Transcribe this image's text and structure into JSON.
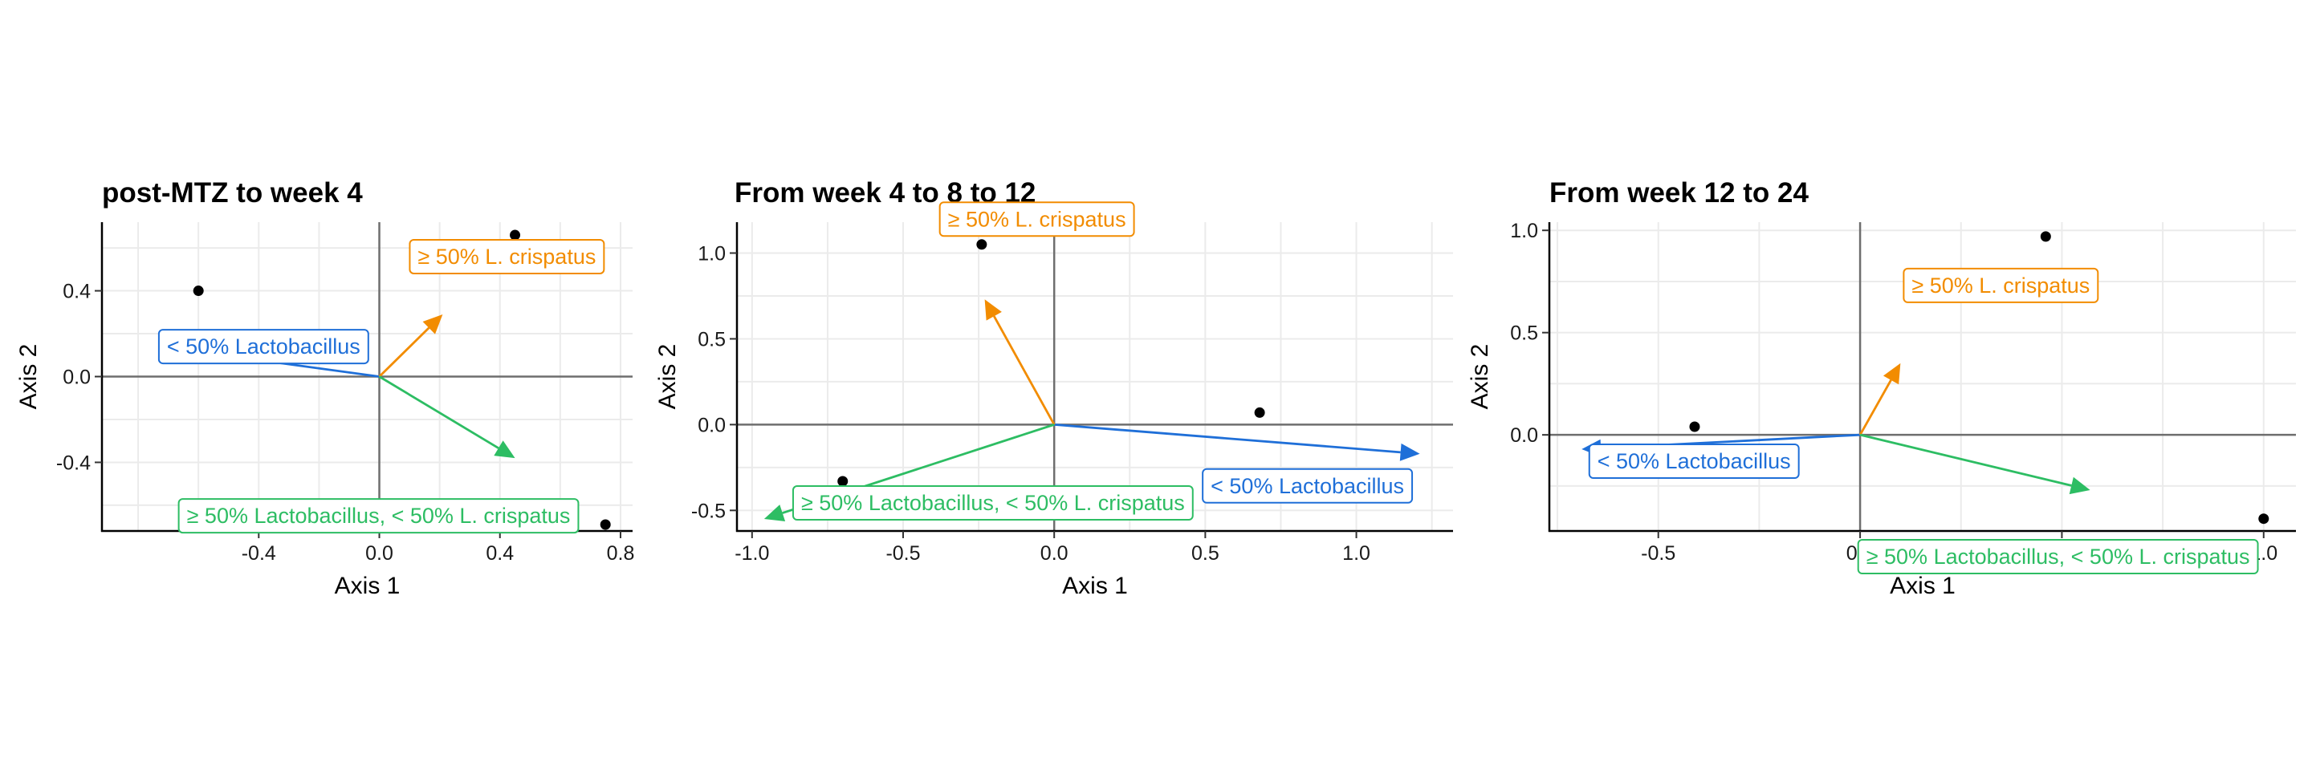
{
  "chart_data": [
    {
      "type": "scatter",
      "title": "post-MTZ to week 4",
      "xlabel": "Axis 1",
      "ylabel": "Axis 2",
      "xlim": [
        -0.92,
        0.84
      ],
      "ylim": [
        -0.72,
        0.72
      ],
      "xticks": [
        -0.4,
        0.0,
        0.4,
        0.8
      ],
      "xtick_labels": [
        "-0.4",
        "0.0",
        "0.4",
        "0.8"
      ],
      "yticks": [
        -0.4,
        0.0,
        0.4
      ],
      "ytick_labels": [
        "-0.4",
        "0.0",
        "0.4"
      ],
      "grid": true,
      "points": [
        {
          "x": -0.6,
          "y": 0.4
        },
        {
          "x": 0.45,
          "y": 0.66
        },
        {
          "x": 0.75,
          "y": -0.69
        }
      ],
      "vectors": [
        {
          "label": "< 50% Lactobacillus",
          "x": -0.73,
          "y": 0.14,
          "color": "#1f6fd8"
        },
        {
          "label": "≥ 50% L. crispatus",
          "x": 0.21,
          "y": 0.29,
          "color": "#f28c00"
        },
        {
          "label": "≥ 50% Lactobacillus, < 50% L. crispatus",
          "x": 0.45,
          "y": -0.38,
          "color": "#2dbd63"
        }
      ]
    },
    {
      "type": "scatter",
      "title": "From week 4 to 8 to 12",
      "xlabel": "Axis 1",
      "ylabel": "Axis 2",
      "xlim": [
        -1.05,
        1.32
      ],
      "ylim": [
        -0.62,
        1.18
      ],
      "xticks": [
        -1.0,
        -0.5,
        0.0,
        0.5,
        1.0
      ],
      "xtick_labels": [
        "-1.0",
        "-0.5",
        "0.0",
        "0.5",
        "1.0"
      ],
      "yticks": [
        -0.5,
        0.0,
        0.5,
        1.0
      ],
      "ytick_labels": [
        "-0.5",
        "0.0",
        "0.5",
        "1.0"
      ],
      "grid": true,
      "points": [
        {
          "x": -0.24,
          "y": 1.05
        },
        {
          "x": 0.68,
          "y": 0.07
        },
        {
          "x": -0.7,
          "y": -0.33
        }
      ],
      "vectors": [
        {
          "label": "< 50% Lactobacillus",
          "x": 1.21,
          "y": -0.17,
          "color": "#1f6fd8"
        },
        {
          "label": "≥ 50% L. crispatus",
          "x": -0.23,
          "y": 0.73,
          "color": "#f28c00"
        },
        {
          "label": "≥ 50% Lactobacillus, < 50% L. crispatus",
          "x": -0.96,
          "y": -0.55,
          "color": "#2dbd63"
        }
      ]
    },
    {
      "type": "scatter",
      "title": "From week 12 to 24",
      "xlabel": "Axis 1",
      "ylabel": "Axis 2",
      "xlim": [
        -0.77,
        1.08
      ],
      "ylim": [
        -0.47,
        1.04
      ],
      "xticks": [
        -0.5,
        0.0,
        0.5,
        1.0
      ],
      "xtick_labels": [
        "-0.5",
        "0.0",
        "0.5",
        "1.0"
      ],
      "yticks": [
        0.0,
        0.5,
        1.0
      ],
      "ytick_labels": [
        "0.0",
        "0.5",
        "1.0"
      ],
      "grid": true,
      "points": [
        {
          "x": -0.41,
          "y": 0.04
        },
        {
          "x": 0.46,
          "y": 0.97
        },
        {
          "x": 1.0,
          "y": -0.41
        }
      ],
      "vectors": [
        {
          "label": "< 50% Lactobacillus",
          "x": -0.69,
          "y": -0.07,
          "color": "#1f6fd8"
        },
        {
          "label": "≥ 50% L. crispatus",
          "x": 0.1,
          "y": 0.35,
          "color": "#f28c00"
        },
        {
          "label": "≥ 50% Lactobacillus, < 50% L. crispatus",
          "x": 0.57,
          "y": -0.27,
          "color": "#2dbd63"
        }
      ]
    }
  ]
}
